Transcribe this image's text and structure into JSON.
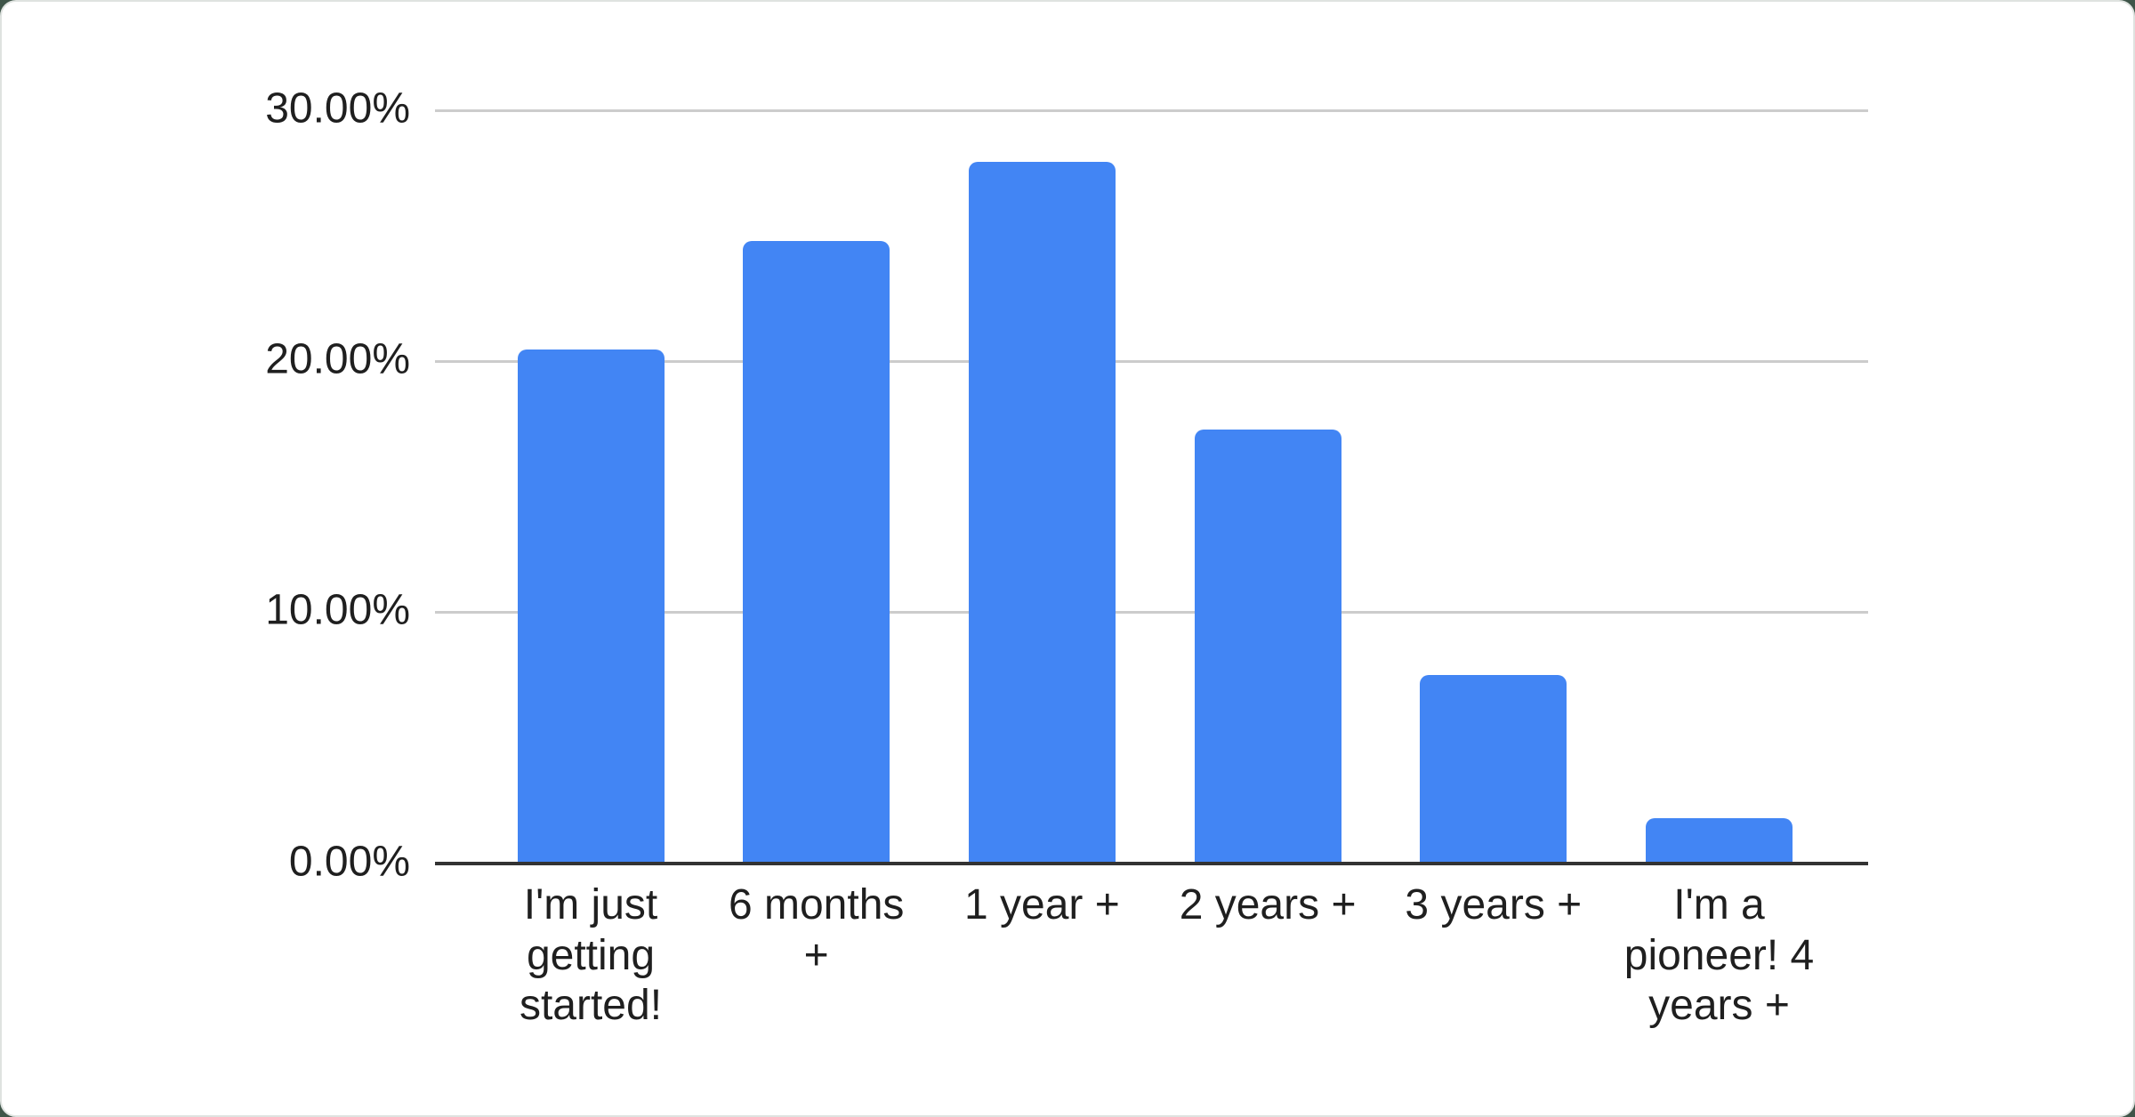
{
  "chart_data": {
    "type": "bar",
    "title": "",
    "xlabel": "",
    "ylabel": "",
    "categories": [
      "I'm just getting started!",
      "6 months +",
      "1 year +",
      "2 years +",
      "3 years +",
      "I'm a pioneer! 4 years +"
    ],
    "values": [
      20.45,
      24.79,
      27.94,
      17.29,
      7.5,
      1.78
    ],
    "ylim": [
      0,
      30
    ],
    "yticks": [
      {
        "value": 0,
        "label": "0.00%"
      },
      {
        "value": 10,
        "label": "10.00%"
      },
      {
        "value": 20,
        "label": "20.00%"
      },
      {
        "value": 30,
        "label": "30.00%"
      }
    ],
    "grid": true,
    "legend": "none"
  },
  "colors": {
    "bar": "#4285f4",
    "gridline": "#cccccc",
    "axis_line": "#333333",
    "label_text": "#1f1f1f",
    "card_background": "#ffffff",
    "card_border": "#dfe3e0",
    "page_background": "#3f5549"
  }
}
